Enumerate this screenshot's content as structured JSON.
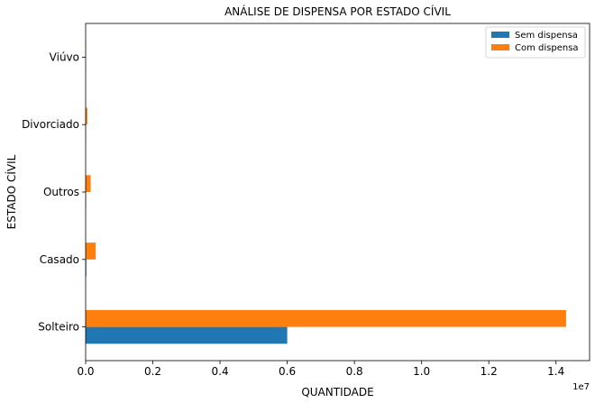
{
  "chart_data": {
    "type": "bar",
    "orientation": "horizontal",
    "title": "ANÁLISE DE DISPENSA POR ESTADO CÍVIL",
    "xlabel": "QUANTIDADE",
    "ylabel": "ESTADO CÍVIL",
    "x_offset_label": "1e7",
    "categories": [
      "Solteiro",
      "Casado",
      "Outros",
      "Divorciado",
      "Viúvo"
    ],
    "series": [
      {
        "name": "Sem dispensa",
        "color": "#1f77b4",
        "values": [
          6000000,
          20000,
          10000,
          5000,
          2000
        ]
      },
      {
        "name": "Com dispensa",
        "color": "#ff7f0e",
        "values": [
          14300000,
          300000,
          150000,
          50000,
          10000
        ]
      }
    ],
    "xlim": [
      0,
      15000000
    ],
    "xticks": [
      0,
      2000000,
      4000000,
      6000000,
      8000000,
      10000000,
      12000000,
      14000000
    ],
    "xtick_labels": [
      "0.0",
      "0.2",
      "0.4",
      "0.6",
      "0.8",
      "1.0",
      "1.2",
      "1.4"
    ],
    "grid": false,
    "legend_position": "top-right"
  }
}
